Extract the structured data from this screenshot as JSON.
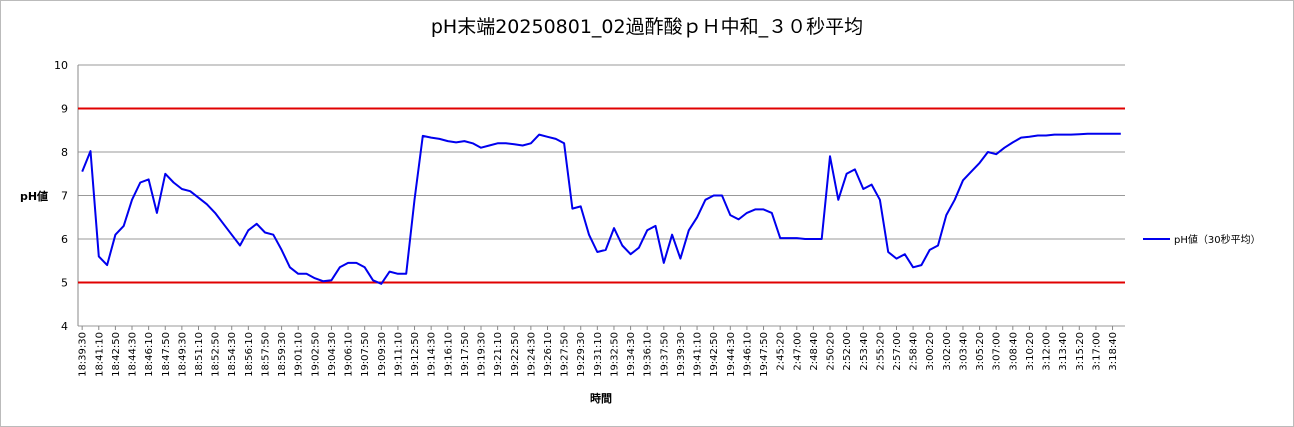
{
  "chart_data": {
    "type": "line",
    "title": "pH末端20250801_02過酢酸ｐＨ中和_３０秒平均",
    "y_label": "pH値",
    "x_label": "時間",
    "categories": [
      "18:39:30",
      null,
      "18:41:10",
      null,
      "18:42:50",
      null,
      "18:44:30",
      null,
      "18:46:10",
      null,
      "18:47:50",
      null,
      "18:49:30",
      null,
      "18:51:10",
      null,
      "18:52:50",
      null,
      "18:54:30",
      null,
      "18:56:10",
      null,
      "18:57:50",
      null,
      "18:59:30",
      null,
      "19:01:10",
      null,
      "19:02:50",
      null,
      "19:04:30",
      null,
      "19:06:10",
      null,
      "19:07:50",
      null,
      "19:09:30",
      null,
      "19:11:10",
      null,
      "19:12:50",
      null,
      "19:14:30",
      null,
      "19:16:10",
      null,
      "19:17:50",
      null,
      "19:19:30",
      null,
      "19:21:10",
      null,
      "19:22:50",
      null,
      "19:24:30",
      null,
      "19:26:10",
      null,
      "19:27:50",
      null,
      "19:29:30",
      null,
      "19:31:10",
      null,
      "19:32:50",
      null,
      "19:34:30",
      null,
      "19:36:10",
      null,
      "19:37:50",
      null,
      "19:39:30",
      null,
      "19:41:10",
      null,
      "19:42:50",
      null,
      "19:44:30",
      null,
      "19:46:10",
      null,
      "19:47:50",
      null,
      "2:45:20",
      null,
      "2:47:00",
      null,
      "2:48:40",
      null,
      "2:50:20",
      null,
      "2:52:00",
      null,
      "2:53:40",
      null,
      "2:55:20",
      null,
      "2:57:00",
      null,
      "2:58:40",
      null,
      "3:00:20",
      null,
      "3:02:00",
      null,
      "3:03:40",
      null,
      "3:05:20",
      null,
      "3:07:00",
      null,
      "3:08:40",
      null,
      "3:10:20",
      null,
      "3:12:00",
      null,
      "3:13:40",
      null,
      "3:15:20",
      null,
      "3:17:00",
      null,
      "3:18:40",
      null
    ],
    "series": [
      {
        "name": "pH値（30秒平均）",
        "color": "#0000ee",
        "values": [
          7.55,
          8.02,
          5.6,
          5.4,
          6.1,
          6.3,
          6.9,
          7.3,
          7.37,
          6.6,
          7.5,
          7.3,
          7.15,
          7.1,
          6.95,
          6.8,
          6.6,
          6.35,
          6.1,
          5.85,
          6.2,
          6.35,
          6.15,
          6.1,
          5.75,
          5.35,
          5.2,
          5.2,
          5.1,
          5.03,
          5.05,
          5.35,
          5.45,
          5.45,
          5.35,
          5.05,
          4.97,
          5.25,
          5.2,
          5.2,
          6.9,
          8.37,
          8.33,
          8.3,
          8.25,
          8.22,
          8.25,
          8.2,
          8.1,
          8.15,
          8.2,
          8.2,
          8.18,
          8.15,
          8.2,
          8.4,
          8.35,
          8.3,
          8.2,
          6.7,
          6.75,
          6.1,
          5.7,
          5.75,
          6.25,
          5.85,
          5.65,
          5.8,
          6.2,
          6.3,
          5.45,
          6.1,
          5.55,
          6.2,
          6.5,
          6.9,
          7.0,
          7.0,
          6.55,
          6.45,
          6.6,
          6.68,
          6.68,
          6.6,
          6.02,
          6.02,
          6.02,
          6.0,
          6.0,
          6.0,
          7.9,
          6.9,
          7.5,
          7.6,
          7.15,
          7.25,
          6.9,
          5.7,
          5.55,
          5.65,
          5.35,
          5.4,
          5.75,
          5.85,
          6.55,
          6.9,
          7.35,
          7.55,
          7.75,
          8.0,
          7.95,
          8.1,
          8.22,
          8.33,
          8.35,
          8.38,
          8.38,
          8.4,
          8.4,
          8.4,
          8.41,
          8.42,
          8.42,
          8.42,
          8.42,
          8.42
        ]
      }
    ],
    "reference_lines": [
      {
        "value": 5,
        "color": "#e00000"
      },
      {
        "value": 9,
        "color": "#e00000"
      }
    ],
    "ylim": [
      4,
      10
    ],
    "yticks": [
      4,
      5,
      6,
      7,
      8,
      9,
      10
    ],
    "grid": true,
    "legend": "right"
  }
}
